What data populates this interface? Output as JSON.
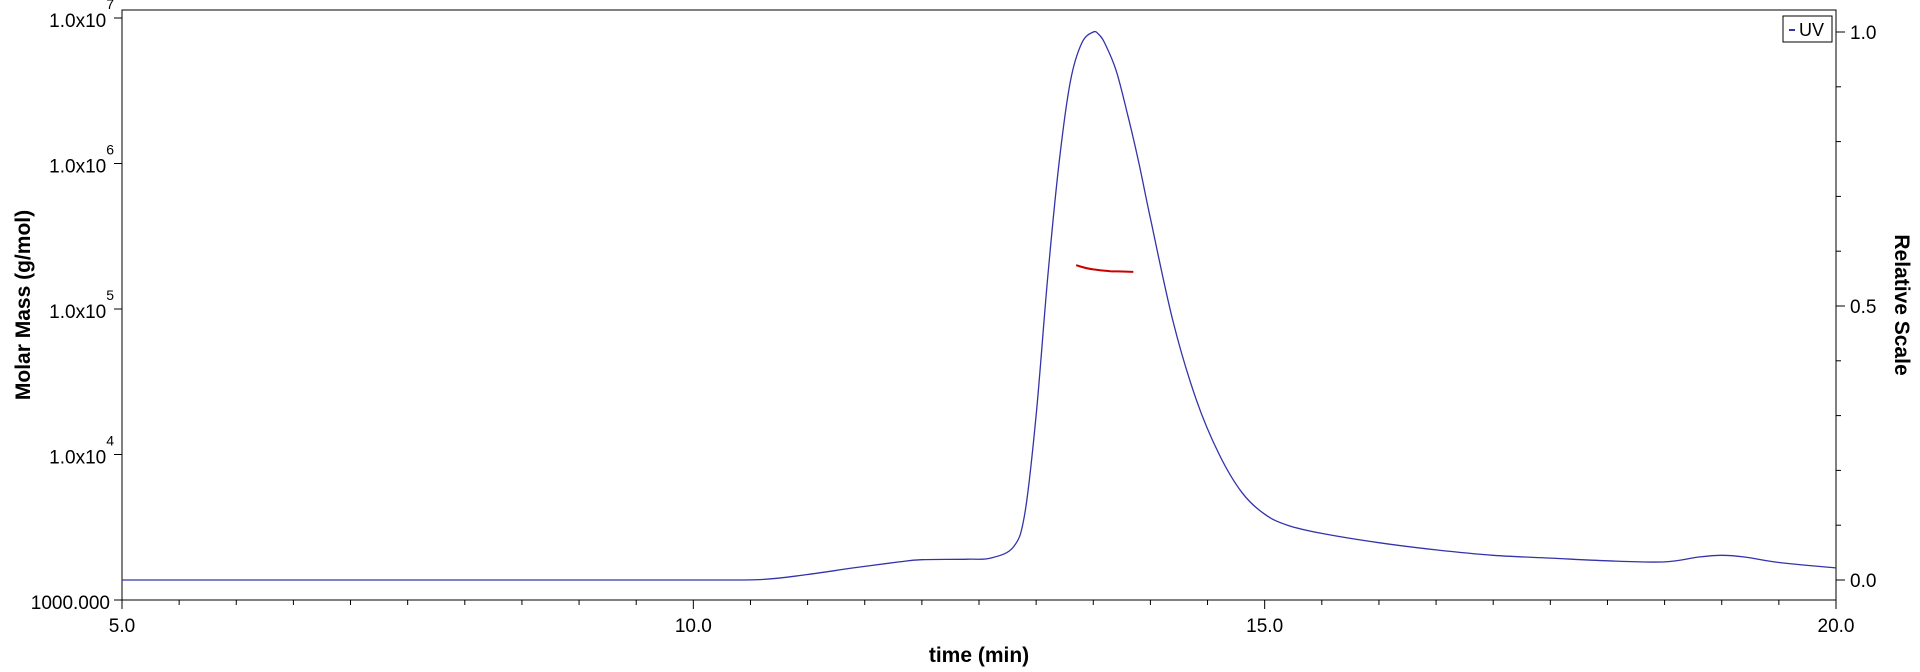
{
  "chart_data": {
    "type": "line",
    "title": "",
    "xlabel": "time (min)",
    "ylabel": "Molar Mass (g/mol)",
    "y2label": "Relative Scale",
    "xlim": [
      5.0,
      20.0
    ],
    "ylim": [
      1000,
      10000000
    ],
    "yscale": "log",
    "y2lim": [
      0.0,
      1.0
    ],
    "x_ticks": [
      "5.0",
      "10.0",
      "15.0",
      "20.0"
    ],
    "x_tick_values": [
      5.0,
      10.0,
      15.0,
      20.0
    ],
    "y_ticks": [
      {
        "value": 1000,
        "mantissa": "1000.000",
        "exp": ""
      },
      {
        "value": 10000,
        "mantissa": "1.0x10",
        "exp": "4"
      },
      {
        "value": 100000,
        "mantissa": "1.0x10",
        "exp": "5"
      },
      {
        "value": 1000000,
        "mantissa": "1.0x10",
        "exp": "6"
      },
      {
        "value": 10000000,
        "mantissa": "1.0x10",
        "exp": "7"
      }
    ],
    "y2_ticks": [
      "0.0",
      "0.5",
      "1.0"
    ],
    "y2_tick_values": [
      0.0,
      0.5,
      1.0
    ],
    "legend": {
      "position": "top-right",
      "entries": [
        "UV"
      ]
    },
    "grid": false,
    "series": [
      {
        "name": "UV",
        "axis": "right",
        "color": "#3333aa",
        "x": [
          5.0,
          6.0,
          7.0,
          8.0,
          9.0,
          10.0,
          10.6,
          11.0,
          11.4,
          11.8,
          12.0,
          12.4,
          12.6,
          12.8,
          12.9,
          13.0,
          13.1,
          13.2,
          13.3,
          13.4,
          13.5,
          13.55,
          13.6,
          13.7,
          13.8,
          13.9,
          14.0,
          14.2,
          14.4,
          14.6,
          14.8,
          15.0,
          15.2,
          15.5,
          16.0,
          16.5,
          17.0,
          17.5,
          18.0,
          18.5,
          18.8,
          19.0,
          19.2,
          19.5,
          20.0
        ],
        "y": [
          0.0,
          0.0,
          0.0,
          0.0,
          0.0,
          0.0,
          0.001,
          0.01,
          0.022,
          0.033,
          0.037,
          0.038,
          0.04,
          0.06,
          0.12,
          0.3,
          0.55,
          0.76,
          0.91,
          0.98,
          1.0,
          0.995,
          0.98,
          0.93,
          0.85,
          0.76,
          0.66,
          0.47,
          0.33,
          0.23,
          0.16,
          0.12,
          0.1,
          0.085,
          0.068,
          0.055,
          0.045,
          0.04,
          0.035,
          0.033,
          0.042,
          0.045,
          0.042,
          0.032,
          0.022
        ]
      },
      {
        "name": "",
        "axis": "left",
        "color": "#cc0000",
        "x": [
          13.35,
          13.45,
          13.55,
          13.65,
          13.75,
          13.85
        ],
        "y": [
          200000,
          190000,
          185000,
          182000,
          181000,
          180000
        ]
      }
    ]
  }
}
